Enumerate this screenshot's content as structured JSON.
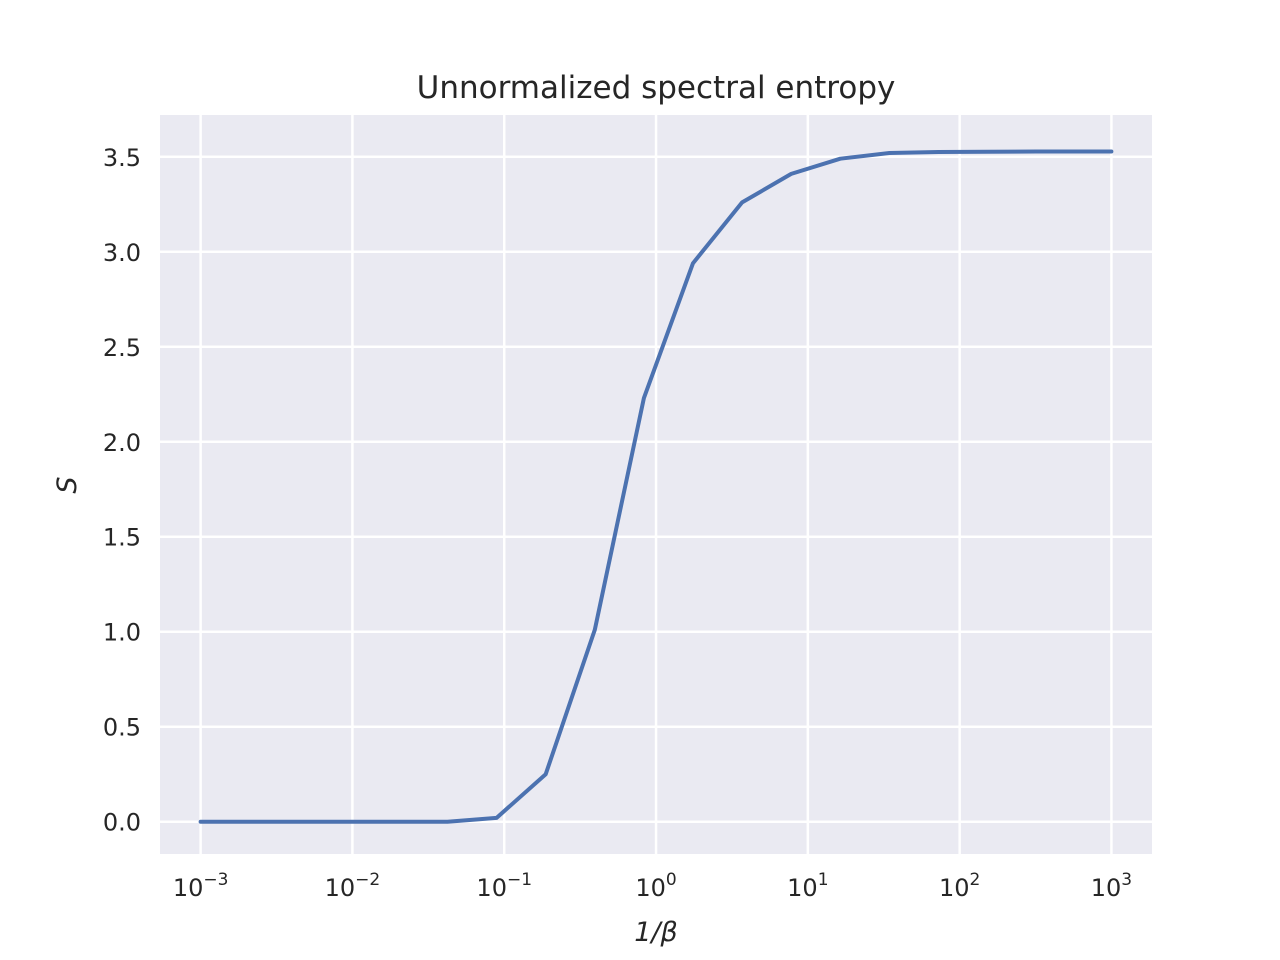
{
  "chart_data": {
    "type": "line",
    "title": "Unnormalized spectral entropy",
    "xlabel": "1/β",
    "ylabel": "S",
    "x_scale": "log",
    "xlim": [
      0.00054,
      1850
    ],
    "ylim": [
      -0.17,
      3.72
    ],
    "x_ticks": [
      {
        "value": 0.001,
        "base": "10",
        "exp": "−3"
      },
      {
        "value": 0.01,
        "base": "10",
        "exp": "−2"
      },
      {
        "value": 0.1,
        "base": "10",
        "exp": "−1"
      },
      {
        "value": 1,
        "base": "10",
        "exp": "0"
      },
      {
        "value": 10,
        "base": "10",
        "exp": "1"
      },
      {
        "value": 100,
        "base": "10",
        "exp": "2"
      },
      {
        "value": 1000,
        "base": "10",
        "exp": "3"
      }
    ],
    "y_ticks": [
      {
        "value": 0.0,
        "label": "0.0"
      },
      {
        "value": 0.5,
        "label": "0.5"
      },
      {
        "value": 1.0,
        "label": "1.0"
      },
      {
        "value": 1.5,
        "label": "1.5"
      },
      {
        "value": 2.0,
        "label": "2.0"
      },
      {
        "value": 2.5,
        "label": "2.5"
      },
      {
        "value": 3.0,
        "label": "3.0"
      },
      {
        "value": 3.5,
        "label": "3.5"
      }
    ],
    "grid": true,
    "background": "#eaeaf2",
    "series": [
      {
        "color": "#4c72b0",
        "x": [
          0.001,
          0.0021,
          0.0045,
          0.0095,
          0.0201,
          0.0423,
          0.0891,
          0.1875,
          0.3949,
          0.8318,
          1.7516,
          3.6889,
          7.7698,
          16.364,
          34.46,
          72.57,
          152.8,
          321.8,
          677.6,
          1000
        ],
        "y": [
          0.0,
          0.0,
          0.0,
          0.0,
          0.0,
          0.0,
          0.02,
          0.25,
          1.01,
          2.23,
          2.94,
          3.26,
          3.41,
          3.49,
          3.52,
          3.525,
          3.527,
          3.528,
          3.528,
          3.528
        ]
      }
    ]
  }
}
